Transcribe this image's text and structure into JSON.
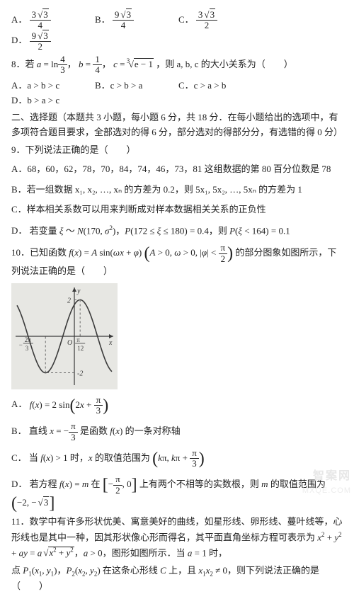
{
  "q7_options": {
    "A_num": "3√3",
    "A_den": "4",
    "B_num": "9√3",
    "B_den": "4",
    "C_num": "3√3",
    "C_den": "2",
    "D_num": "9√3",
    "D_den": "2"
  },
  "q8": {
    "stem_prefix": "8．若",
    "stem_expr": "a = ln(4/3)，b = 1/4，c = ∛(e − 1)",
    "stem_suffix": "，则 a, b, c 的大小关系为（　　）",
    "A": "a > b > c",
    "B": "c > b > a",
    "C": "c > a > b",
    "D": "b > a > c"
  },
  "section2": {
    "title": "二、选择题（本题共 3 小题，每小题 6 分，共 18 分．在每小题给出的选项中，有多项符合题目要求，全部选对的得 6 分，部分选对的得部分分，有选错的得 0 分）"
  },
  "q9": {
    "stem": "9．下列说法正确的是（　　）",
    "A": "68，60，62，78，70，84，74，46，73，81 这组数据的第 80 百分位数是 78",
    "B_prefix": "若一组数据 x₁, x₂, …, xₙ 的方差为 0.2，则 5x₁, 5x₂, …, 5xₙ 的方差为 1",
    "C": "样本相关系数可以用来判断成对样本数据相关关系的正负性",
    "D": "若变量 ξ ～ N(170, σ²)，P(172 ≤ ξ ≤ 180) = 0.4，则 P(ξ < 164) = 0.1"
  },
  "q10": {
    "stem_prefix": "10．已知函数 ",
    "stem_func": "f(x) = A sin(ωx + φ)（A > 0, ω > 0, |φ| < π/2）",
    "stem_suffix": "的部分图象如图所示，下列说法正确的是（　　）",
    "A": "f(x) = 2 sin(2x + π/3)",
    "B": "直线 x = −π/3 是函数 f(x) 的一条对称轴",
    "C": "当 f(x) > 1 时，x 的取值范围为 (kπ, kπ + π/3)",
    "D": "若方程 f(x) = m 在 [−π/2, 0] 上有两个不相等的实数根，则 m 的取值范围为 (−2, −√3]"
  },
  "q10_graph": {
    "type": "function-plot",
    "background_color": "#e7e7e3",
    "axis_color": "#3b3b3b",
    "curve_color": "#3b3b3b",
    "amplitude": 2,
    "y_ticks": [
      2,
      -2
    ],
    "x_labels": [
      {
        "text": "−2π/3",
        "x_value": -2.094,
        "frac_num": "2π",
        "frac_den": "3",
        "neg": true
      },
      {
        "text": "π/12",
        "x_value": 0.262,
        "frac_num": "π",
        "frac_den": "12",
        "neg": false
      }
    ],
    "xlim": [
      -2.6,
      1.7
    ],
    "ylim": [
      -2.6,
      2.6
    ],
    "curve": {
      "A": 2,
      "omega": 2,
      "phi": 1.0472
    },
    "dash_color": "#6b6b6b"
  },
  "q11": {
    "stem1": "11．数学中有许多形状优美、寓意美好的曲线，如星形线、卵形线、蔓叶线等，心形线也是其中一种，因其形状像心形而得名，其平面直角坐标方程可表示为 x² + y² + ay = a√(x² + y²)，a > 0，图形如图所示．当 a = 1 时，",
    "stem2": "点 P₁(x₁, y₁)，P₂(x₂, y₂) 在这条心形线 C 上，且 x₁x₂ ≠ 0，则下列说法正确的是（　　）"
  },
  "watermark": {
    "line1": "智案网",
    "line2": "MXQE.COM"
  },
  "colors": {
    "text": "#222222",
    "bg": "#ffffff"
  }
}
